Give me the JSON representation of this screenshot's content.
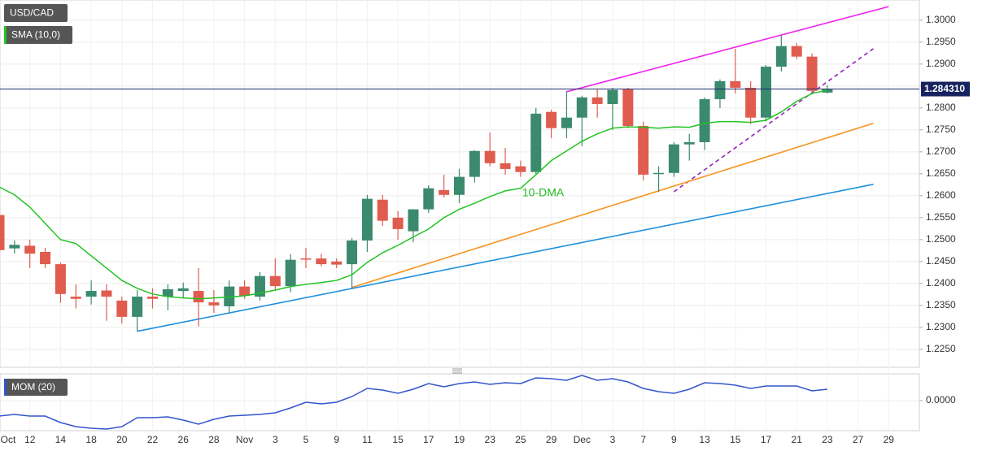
{
  "chart_data": [
    {
      "type": "candlestick",
      "title": "USD/CAD",
      "ylim": [
        1.2209,
        1.3046
      ],
      "yticks": [
        {
          "value": 1.225,
          "label": "1.2250"
        },
        {
          "value": 1.23,
          "label": "1.2300"
        },
        {
          "value": 1.235,
          "label": "1.2350"
        },
        {
          "value": 1.24,
          "label": "1.2400"
        },
        {
          "value": 1.245,
          "label": "1.2450"
        },
        {
          "value": 1.25,
          "label": "1.2500"
        },
        {
          "value": 1.255,
          "label": "1.2550"
        },
        {
          "value": 1.26,
          "label": "1.2600"
        },
        {
          "value": 1.265,
          "label": "1.2650"
        },
        {
          "value": 1.27,
          "label": "1.2700"
        },
        {
          "value": 1.275,
          "label": "1.2750"
        },
        {
          "value": 1.28,
          "label": "1.2800"
        },
        {
          "value": 1.285,
          "label": "1.2850"
        },
        {
          "value": 1.29,
          "label": "1.2900"
        },
        {
          "value": 1.295,
          "label": "1.2950"
        },
        {
          "value": 1.3,
          "label": "1.3000"
        }
      ],
      "grid": true,
      "up_color": "#3b8a6e",
      "down_color": "#e05c4f",
      "open": [
        1.2556,
        1.248,
        1.2486,
        1.2472,
        1.2444,
        1.237,
        1.237,
        1.2384,
        1.2361,
        1.2324,
        1.237,
        1.237,
        1.2383,
        1.2383,
        1.2357,
        1.2348,
        1.2393,
        1.237,
        1.2417,
        1.2394,
        1.2457,
        1.2457,
        1.245,
        1.2444,
        1.2498,
        1.2591,
        1.255,
        1.2519,
        1.2569,
        1.2613,
        1.2602,
        1.2643,
        1.2702,
        1.2674,
        1.2667,
        1.2654,
        1.2791,
        1.2754,
        1.2778,
        1.2824,
        1.2809,
        1.2843,
        1.2759,
        1.265,
        1.2652,
        1.2717,
        1.2722,
        1.282,
        1.2861,
        1.2846,
        1.2778,
        1.2894,
        1.2941,
        1.2917,
        1.2835,
        null,
        null,
        null,
        null
      ],
      "high": [
        1.2565,
        1.2498,
        1.25,
        1.2481,
        1.2448,
        1.2398,
        1.2407,
        1.2398,
        1.237,
        1.2385,
        1.2389,
        1.2398,
        1.2402,
        1.2435,
        1.2385,
        1.2407,
        1.2407,
        1.2426,
        1.2457,
        1.2467,
        1.2481,
        1.2468,
        1.2457,
        1.2504,
        1.2602,
        1.2602,
        1.2565,
        1.2569,
        1.2624,
        1.2648,
        1.2661,
        1.2704,
        1.2744,
        1.2709,
        1.268,
        1.28,
        1.2796,
        1.2839,
        1.2828,
        1.2843,
        1.2846,
        1.2846,
        1.2769,
        1.2667,
        1.2722,
        1.2741,
        1.2824,
        1.2865,
        1.2935,
        1.2861,
        1.2898,
        1.2965,
        1.2948,
        1.2924,
        1.2852,
        null,
        null,
        null,
        null
      ],
      "low": [
        1.2454,
        1.2468,
        1.2435,
        1.2435,
        1.2356,
        1.2343,
        1.2352,
        1.2315,
        1.2309,
        1.2291,
        1.2343,
        1.2339,
        1.2367,
        1.2302,
        1.2333,
        1.2333,
        1.2365,
        1.2361,
        1.2383,
        1.238,
        1.2435,
        1.2439,
        1.2435,
        1.2387,
        1.2472,
        1.2531,
        1.25,
        1.2494,
        1.2561,
        1.2596,
        1.2583,
        1.263,
        1.2667,
        1.2648,
        1.2643,
        1.2648,
        1.2731,
        1.2731,
        1.2713,
        1.2778,
        1.275,
        1.2754,
        1.2635,
        1.2609,
        1.2643,
        1.268,
        1.2704,
        1.28,
        1.2833,
        1.2763,
        1.2769,
        1.2883,
        1.2911,
        1.2831,
        1.2833,
        null,
        null,
        null,
        null
      ],
      "close": [
        1.2476,
        1.2488,
        1.2468,
        1.2444,
        1.2376,
        1.2365,
        1.2383,
        1.237,
        1.2324,
        1.237,
        1.2365,
        1.2387,
        1.2389,
        1.2357,
        1.235,
        1.2393,
        1.2372,
        1.2417,
        1.2394,
        1.2454,
        1.2456,
        1.2444,
        1.2443,
        1.2498,
        1.2593,
        1.2543,
        1.2524,
        1.2569,
        1.2617,
        1.2602,
        1.2643,
        1.2702,
        1.2674,
        1.2661,
        1.2654,
        1.2787,
        1.2754,
        1.2778,
        1.2824,
        1.2809,
        1.2841,
        1.2759,
        1.2648,
        1.2652,
        1.2717,
        1.2722,
        1.282,
        1.2861,
        1.2846,
        1.2778,
        1.2894,
        1.2941,
        1.2917,
        1.2839,
        1.2843,
        null,
        null,
        null,
        null
      ],
      "overlays": [
        {
          "name": "SMA (10,0)",
          "color": "#22c322",
          "values": [
            1.262,
            1.2602,
            1.2574,
            1.2537,
            1.25,
            1.2491,
            1.2463,
            1.2435,
            1.2407,
            1.2389,
            1.2376,
            1.237,
            1.2367,
            1.2365,
            1.2367,
            1.2369,
            1.2372,
            1.2378,
            1.2385,
            1.2393,
            1.2398,
            1.2402,
            1.2407,
            1.242,
            1.2448,
            1.247,
            1.2487,
            1.2506,
            1.2524,
            1.255,
            1.2569,
            1.2583,
            1.2598,
            1.2611,
            1.2617,
            1.2648,
            1.268,
            1.2702,
            1.2724,
            1.2741,
            1.2754,
            1.2757,
            1.2756,
            1.2754,
            1.2757,
            1.2756,
            1.2765,
            1.2769,
            1.2769,
            1.2767,
            1.2772,
            1.2791,
            1.2815,
            1.2833,
            1.2841,
            null,
            null,
            null,
            null
          ]
        }
      ],
      "last_price": {
        "value": 1.28431,
        "label": "1.284310"
      },
      "trendlines": [
        {
          "color": "#ee22ee",
          "dashed": false,
          "x": [
            37,
            58
          ],
          "y": [
            1.2837,
            1.3031
          ]
        },
        {
          "color": "#9922bb",
          "dashed": true,
          "x": [
            44,
            57
          ],
          "y": [
            1.2609,
            1.2935
          ]
        },
        {
          "color": "#f5941e",
          "dashed": false,
          "x": [
            23,
            57
          ],
          "y": [
            1.2391,
            1.2765
          ]
        },
        {
          "color": "#1e90e0",
          "dashed": false,
          "x": [
            9,
            57
          ],
          "y": [
            1.2291,
            1.2626
          ]
        }
      ],
      "annotations": [
        {
          "text": "10-DMA",
          "x": 34,
          "y": 1.2606,
          "color": "#22b822"
        }
      ]
    },
    {
      "type": "line",
      "title": "MOM (20)",
      "color": "#3355cc",
      "categories": [
        "Oct",
        null,
        "12",
        null,
        "14",
        null,
        "18",
        null,
        "20",
        null,
        "22",
        null,
        "26",
        null,
        "28",
        null,
        "Nov",
        null,
        "3",
        null,
        "5",
        null,
        "9",
        null,
        "11",
        null,
        "15",
        null,
        "17",
        null,
        "19",
        null,
        "23",
        null,
        "25",
        null,
        "29",
        null,
        "Dec",
        null,
        "3",
        null,
        "7",
        null,
        "9",
        null,
        "13",
        null,
        "15",
        null,
        "17",
        null,
        "21",
        null,
        "23",
        null,
        "27",
        null,
        "29"
      ],
      "values": [
        -0.019,
        -0.017,
        -0.019,
        -0.019,
        -0.027,
        -0.032,
        -0.034,
        -0.035,
        -0.032,
        -0.021,
        -0.021,
        -0.02,
        -0.024,
        -0.029,
        -0.023,
        -0.019,
        -0.018,
        -0.017,
        -0.015,
        -0.009,
        -0.002,
        -0.004,
        -0.002,
        0.005,
        0.015,
        0.013,
        0.009,
        0.014,
        0.021,
        0.017,
        0.021,
        0.023,
        0.02,
        0.022,
        0.021,
        0.028,
        0.027,
        0.025,
        0.031,
        0.025,
        0.027,
        0.023,
        0.015,
        0.011,
        0.009,
        0.014,
        0.022,
        0.021,
        0.019,
        0.015,
        0.018,
        0.018,
        0.018,
        0.012,
        0.014,
        null,
        null,
        null,
        null
      ],
      "ylim": [
        -0.037,
        0.033
      ],
      "yticks": [
        {
          "value": 0,
          "label": "0.0000"
        }
      ],
      "grid": true
    }
  ]
}
